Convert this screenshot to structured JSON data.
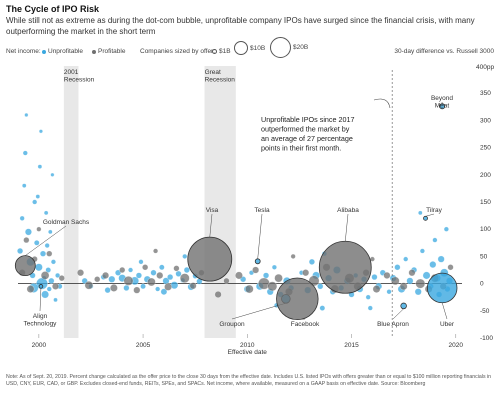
{
  "title": "The Cycle of IPO Risk",
  "subtitle": "While still not as extreme as during the dot-com bubble, unprofitable company IPOs have surged since the financial crisis, with many outperforming the market in the short term",
  "legend": {
    "net_income_label": "Net income:",
    "unprofitable_label": "Unprofitable",
    "profitable_label": "Profitable",
    "size_label": "Companies sized by offer:",
    "size_1b": "$1B",
    "size_10b": "$10B",
    "size_20b": "$20B"
  },
  "right_note": "30-day difference vs. Russell 3000",
  "colors": {
    "unprofitable": "#3aa8e0",
    "profitable": "#707070",
    "recession_band": "#e8e8e8",
    "zero_line": "#222222"
  },
  "annotation_text": [
    "Unprofitable IPOs since 2017",
    "outperformed the market by",
    "an average of 27 percentage",
    "points in their first month."
  ],
  "footnote": "Note: As of Sept. 20, 2019. Percent change calculated as the offer price to the close 30 days from the effective date. Includes U.S. listed IPOs with offers greater than or equal to $100 million reporting financials in USD, CNY, EUR, CAD, or GBP. Excludes closed-end funds, REITs, SPEs, and SPACs. Net income, where available, measured on a GAAP basis on effective date. Source: Bloomberg",
  "chart_data": {
    "type": "scatter",
    "xlabel": "Effective date",
    "x_ticks": [
      2000,
      2005,
      2010,
      2015,
      2020
    ],
    "xlim": [
      1999.0,
      2020.3
    ],
    "ylim": [
      -100,
      400
    ],
    "y_ticks": [
      -100,
      -50,
      0,
      50,
      100,
      150,
      200,
      250,
      300,
      350
    ],
    "y_top_label": "400pp",
    "grid": false,
    "recessions": [
      {
        "label": "2001\nRecession",
        "start": 2001.2,
        "end": 2001.9
      },
      {
        "label": "Great\nRecession",
        "start": 2007.95,
        "end": 2009.45
      }
    ],
    "labeled_points": [
      {
        "label": "Goldman Sachs",
        "x": 1999.35,
        "y": 33,
        "offer_b": 3.7,
        "group": "profitable"
      },
      {
        "label": "Align\nTechnology",
        "x": 2000.1,
        "y": -5,
        "offer_b": 0.13,
        "group": "unprofitable"
      },
      {
        "label": "Visa",
        "x": 2008.2,
        "y": 45,
        "offer_b": 17.9,
        "group": "profitable"
      },
      {
        "label": "Tesla",
        "x": 2010.5,
        "y": 41,
        "offer_b": 0.23,
        "group": "unprofitable"
      },
      {
        "label": "Groupon",
        "x": 2011.85,
        "y": -28,
        "offer_b": 0.7,
        "group": "unprofitable"
      },
      {
        "label": "Facebook",
        "x": 2012.4,
        "y": -28,
        "offer_b": 16,
        "group": "profitable"
      },
      {
        "label": "Alibaba",
        "x": 2014.7,
        "y": 30,
        "offer_b": 25,
        "group": "profitable"
      },
      {
        "label": "Blue Apron",
        "x": 2017.5,
        "y": -41,
        "offer_b": 0.3,
        "group": "unprofitable"
      },
      {
        "label": "Tilray",
        "x": 2018.55,
        "y": 120,
        "offer_b": 0.15,
        "group": "unprofitable"
      },
      {
        "label": "Beyond\nMeat",
        "x": 2019.35,
        "y": 326,
        "offer_b": 0.24,
        "group": "unprofitable"
      },
      {
        "label": "Uber",
        "x": 2019.35,
        "y": -8,
        "offer_b": 8.1,
        "group": "unprofitable"
      }
    ],
    "series": [
      {
        "name": "Unprofitable",
        "points": [
          [
            1999.1,
            60,
            0.3
          ],
          [
            1999.2,
            120,
            0.2
          ],
          [
            1999.3,
            180,
            0.15
          ],
          [
            1999.35,
            240,
            0.2
          ],
          [
            1999.4,
            310,
            0.12
          ],
          [
            1999.5,
            95,
            0.4
          ],
          [
            1999.6,
            40,
            0.6
          ],
          [
            1999.7,
            15,
            0.3
          ],
          [
            1999.8,
            150,
            0.2
          ],
          [
            1999.9,
            75,
            0.25
          ],
          [
            2000.0,
            30,
            0.5
          ],
          [
            2000.05,
            215,
            0.15
          ],
          [
            2000.1,
            280,
            0.12
          ],
          [
            2000.2,
            55,
            0.3
          ],
          [
            2000.25,
            10,
            0.2
          ],
          [
            2000.3,
            -20,
            0.5
          ],
          [
            2000.35,
            130,
            0.15
          ],
          [
            2000.4,
            70,
            0.2
          ],
          [
            2000.45,
            25,
            0.25
          ],
          [
            2000.5,
            -10,
            0.2
          ],
          [
            2000.55,
            95,
            0.15
          ],
          [
            2000.6,
            5,
            0.3
          ],
          [
            2000.7,
            40,
            0.2
          ],
          [
            2000.8,
            -30,
            0.15
          ],
          [
            2000.9,
            15,
            0.2
          ],
          [
            2001.0,
            -5,
            0.25
          ],
          [
            2000.15,
            0,
            1.2
          ],
          [
            1999.75,
            -8,
            0.8
          ],
          [
            1999.95,
            160,
            0.15
          ],
          [
            2000.65,
            200,
            0.12
          ],
          [
            2002.2,
            5,
            0.3
          ],
          [
            2002.5,
            -5,
            0.2
          ],
          [
            2003.1,
            12,
            0.25
          ],
          [
            2003.5,
            8,
            0.4
          ],
          [
            2003.8,
            20,
            0.3
          ],
          [
            2004.0,
            10,
            0.5
          ],
          [
            2004.2,
            -8,
            0.3
          ],
          [
            2004.4,
            25,
            0.2
          ],
          [
            2004.6,
            5,
            0.6
          ],
          [
            2004.8,
            15,
            0.3
          ],
          [
            2005.0,
            -5,
            0.25
          ],
          [
            2005.2,
            8,
            0.4
          ],
          [
            2005.5,
            20,
            0.3
          ],
          [
            2005.7,
            -10,
            0.2
          ],
          [
            2005.9,
            30,
            0.25
          ],
          [
            2006.1,
            5,
            0.4
          ],
          [
            2006.3,
            12,
            0.3
          ],
          [
            2006.5,
            -3,
            0.5
          ],
          [
            2006.7,
            18,
            0.3
          ],
          [
            2006.9,
            6,
            0.2
          ],
          [
            2007.1,
            25,
            0.3
          ],
          [
            2007.3,
            -6,
            0.4
          ],
          [
            2007.5,
            14,
            0.25
          ],
          [
            2007.7,
            4,
            0.3
          ],
          [
            2003.3,
            -12,
            0.3
          ],
          [
            2004.9,
            40,
            0.2
          ],
          [
            2006.0,
            -15,
            0.35
          ],
          [
            2007.0,
            50,
            0.2
          ],
          [
            2009.8,
            8,
            0.3
          ],
          [
            2010.0,
            -10,
            0.4
          ],
          [
            2010.2,
            20,
            0.2
          ],
          [
            2010.6,
            -5,
            0.5
          ],
          [
            2010.9,
            15,
            0.3
          ],
          [
            2011.1,
            -15,
            0.4
          ],
          [
            2011.3,
            30,
            0.2
          ],
          [
            2011.6,
            -20,
            0.3
          ],
          [
            2011.9,
            5,
            0.5
          ],
          [
            2012.1,
            -8,
            0.3
          ],
          [
            2012.6,
            20,
            0.2
          ],
          [
            2012.9,
            -12,
            0.4
          ],
          [
            2013.1,
            40,
            0.3
          ],
          [
            2013.3,
            15,
            0.5
          ],
          [
            2013.5,
            -5,
            0.3
          ],
          [
            2013.7,
            55,
            0.2
          ],
          [
            2013.9,
            10,
            0.4
          ],
          [
            2014.1,
            -15,
            0.3
          ],
          [
            2014.3,
            25,
            0.5
          ],
          [
            2014.5,
            -8,
            0.3
          ],
          [
            2014.8,
            5,
            0.4
          ],
          [
            2015.0,
            -20,
            0.3
          ],
          [
            2015.2,
            15,
            0.2
          ],
          [
            2015.4,
            -10,
            0.4
          ],
          [
            2015.6,
            8,
            0.3
          ],
          [
            2015.8,
            -25,
            0.2
          ],
          [
            2016.1,
            12,
            0.3
          ],
          [
            2016.3,
            -5,
            0.4
          ],
          [
            2016.5,
            20,
            0.3
          ],
          [
            2016.8,
            -15,
            0.2
          ],
          [
            2017.0,
            10,
            0.4
          ],
          [
            2017.2,
            30,
            0.3
          ],
          [
            2017.4,
            -10,
            0.5
          ],
          [
            2017.6,
            45,
            0.2
          ],
          [
            2017.8,
            5,
            0.4
          ],
          [
            2018.0,
            25,
            0.3
          ],
          [
            2018.2,
            -15,
            0.4
          ],
          [
            2018.4,
            60,
            0.2
          ],
          [
            2018.6,
            15,
            0.5
          ],
          [
            2018.8,
            -5,
            0.3
          ],
          [
            2018.9,
            35,
            0.4
          ],
          [
            2019.0,
            80,
            0.2
          ],
          [
            2019.1,
            10,
            0.5
          ],
          [
            2019.2,
            -20,
            0.3
          ],
          [
            2019.3,
            45,
            0.4
          ],
          [
            2019.45,
            20,
            0.6
          ],
          [
            2019.55,
            100,
            0.2
          ],
          [
            2019.6,
            -10,
            0.3
          ],
          [
            2019.7,
            5,
            0.4
          ],
          [
            2018.3,
            130,
            0.15
          ],
          [
            2013.6,
            -45,
            0.25
          ],
          [
            2011.4,
            -40,
            0.2
          ],
          [
            2015.9,
            -45,
            0.2
          ]
        ]
      },
      {
        "name": "Profitable",
        "points": [
          [
            1999.2,
            20,
            0.4
          ],
          [
            1999.4,
            80,
            0.3
          ],
          [
            1999.6,
            -10,
            0.5
          ],
          [
            1999.8,
            45,
            0.3
          ],
          [
            2000.0,
            100,
            0.2
          ],
          [
            2000.3,
            15,
            0.6
          ],
          [
            2000.5,
            55,
            0.3
          ],
          [
            2000.8,
            -5,
            0.4
          ],
          [
            2001.1,
            10,
            0.3
          ],
          [
            2002.0,
            20,
            0.4
          ],
          [
            2002.4,
            -3,
            0.6
          ],
          [
            2002.8,
            8,
            0.3
          ],
          [
            2003.2,
            15,
            0.4
          ],
          [
            2003.6,
            -8,
            0.5
          ],
          [
            2004.0,
            25,
            0.3
          ],
          [
            2004.3,
            5,
            0.8
          ],
          [
            2004.7,
            -12,
            0.4
          ],
          [
            2005.1,
            30,
            0.3
          ],
          [
            2005.4,
            3,
            0.6
          ],
          [
            2005.8,
            15,
            0.4
          ],
          [
            2006.2,
            -6,
            0.5
          ],
          [
            2006.6,
            28,
            0.3
          ],
          [
            2007.0,
            10,
            0.8
          ],
          [
            2007.4,
            -4,
            0.4
          ],
          [
            2007.8,
            20,
            0.3
          ],
          [
            2008.6,
            -20,
            0.4
          ],
          [
            2009.0,
            5,
            0.3
          ],
          [
            2009.6,
            15,
            0.5
          ],
          [
            2010.1,
            -10,
            0.6
          ],
          [
            2010.4,
            25,
            0.4
          ],
          [
            2010.8,
            0,
            1.2
          ],
          [
            2011.2,
            -5,
            0.8
          ],
          [
            2011.5,
            10,
            0.6
          ],
          [
            2012.0,
            -15,
            0.5
          ],
          [
            2012.8,
            20,
            0.4
          ],
          [
            2013.2,
            5,
            1.0
          ],
          [
            2013.8,
            30,
            0.5
          ],
          [
            2014.2,
            -10,
            0.6
          ],
          [
            2014.9,
            10,
            0.8
          ],
          [
            2015.3,
            -5,
            0.6
          ],
          [
            2015.7,
            20,
            0.4
          ],
          [
            2016.2,
            -10,
            0.5
          ],
          [
            2016.7,
            15,
            0.4
          ],
          [
            2017.1,
            5,
            0.6
          ],
          [
            2017.5,
            -5,
            0.5
          ],
          [
            2017.9,
            20,
            0.4
          ],
          [
            2018.3,
            0,
            0.8
          ],
          [
            2018.7,
            -10,
            0.5
          ],
          [
            2019.0,
            10,
            0.6
          ],
          [
            2019.4,
            -5,
            0.4
          ],
          [
            2019.75,
            30,
            0.3
          ],
          [
            2005.6,
            60,
            0.2
          ],
          [
            2012.2,
            50,
            0.2
          ],
          [
            2016.0,
            45,
            0.2
          ]
        ]
      }
    ]
  }
}
